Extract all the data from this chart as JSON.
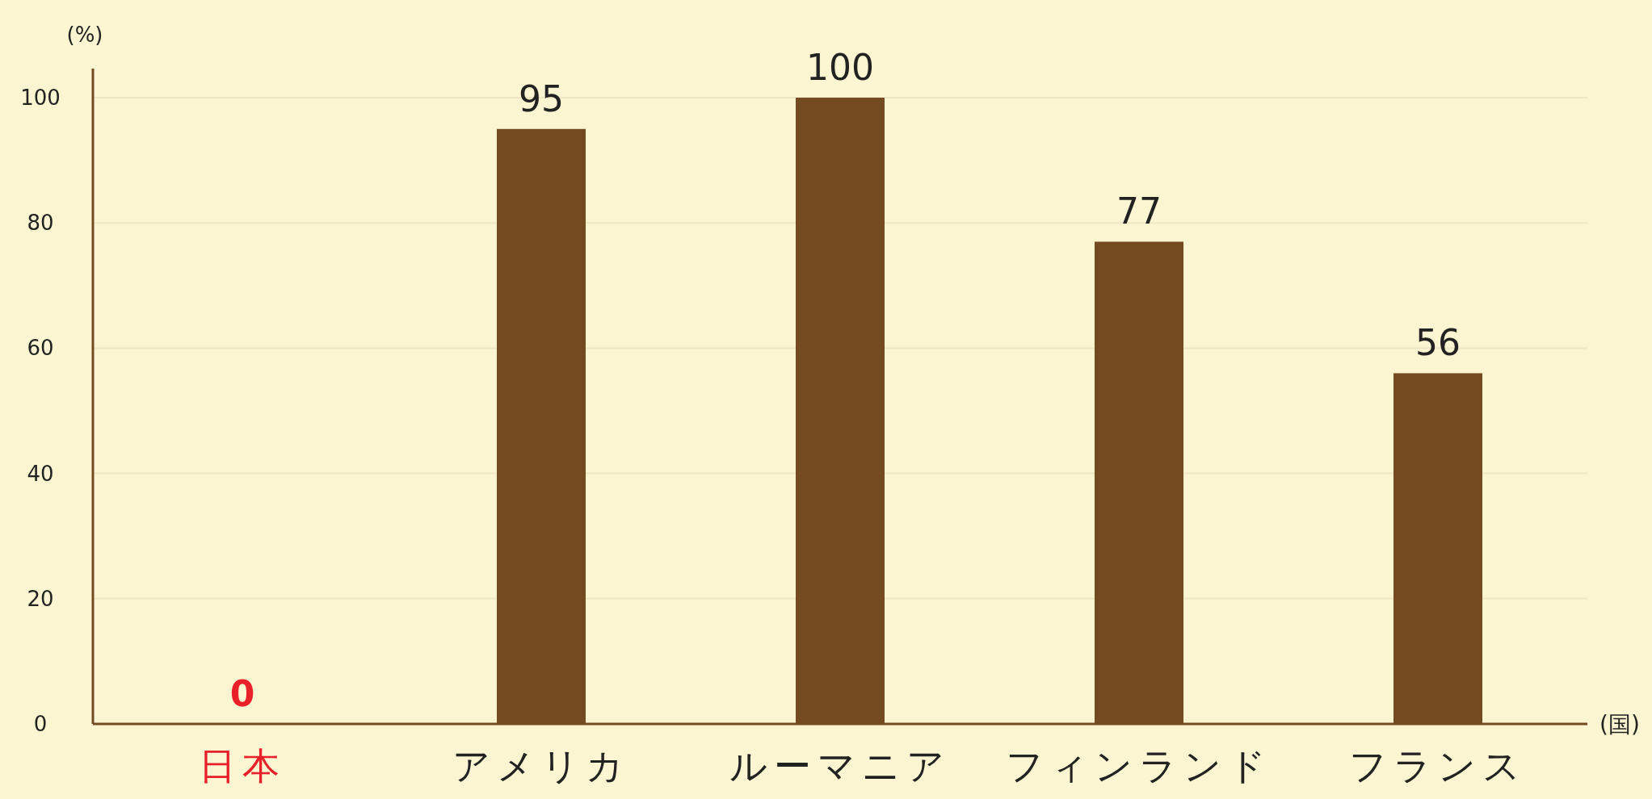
{
  "chart_data": {
    "type": "bar",
    "ylabel": "(%)",
    "xlabel": "(国)",
    "categories": [
      "日本",
      "アメリカ",
      "ルーマニア",
      "フィンランド",
      "フランス"
    ],
    "values": [
      0,
      95,
      100,
      77,
      56
    ],
    "colors": [
      "#e8202a",
      "#744a21",
      "#744a21",
      "#744a21",
      "#744a21"
    ],
    "ylim": [
      0,
      100
    ],
    "yticks": [
      0,
      20,
      40,
      60,
      80,
      100
    ],
    "grid": "y",
    "data_labels": true
  }
}
